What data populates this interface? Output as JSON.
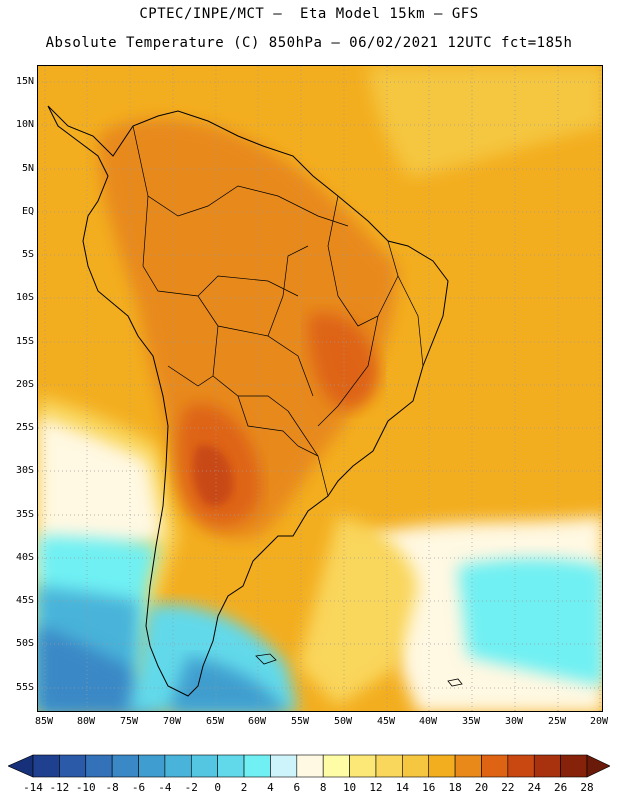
{
  "header": {
    "title_line1": "CPTEC/INPE/MCT –  Eta Model 15km – GFS",
    "title_line2": "Absolute Temperature (C) 850hPa – 06/02/2021 12UTC fct=185h"
  },
  "map": {
    "lat_labels": [
      "15N",
      "10N",
      "5N",
      "EQ",
      "5S",
      "10S",
      "15S",
      "20S",
      "25S",
      "30S",
      "35S",
      "40S",
      "45S",
      "50S",
      "55S"
    ],
    "lon_labels": [
      "85W",
      "80W",
      "75W",
      "70W",
      "65W",
      "60W",
      "55W",
      "50W",
      "45W",
      "40W",
      "35W",
      "30W",
      "25W",
      "20W"
    ]
  },
  "colorbar": {
    "labels": [
      "-14",
      "-12",
      "-10",
      "-8",
      "-6",
      "-4",
      "-2",
      "0",
      "2",
      "4",
      "6",
      "8",
      "10",
      "12",
      "14",
      "16",
      "18",
      "20",
      "22",
      "24",
      "26",
      "28"
    ],
    "colors": [
      "#1f3f8f",
      "#2a5aa8",
      "#3371b8",
      "#3a88c6",
      "#3f9ecf",
      "#49b3d9",
      "#55c6e1",
      "#62d9ea",
      "#70f0f3",
      "#cdf3fb",
      "#fff8e2",
      "#fffca6",
      "#fbe876",
      "#f9d65c",
      "#f5c640",
      "#f3ae1f",
      "#e8891a",
      "#de6414",
      "#c94812",
      "#a9320e",
      "#852209"
    ],
    "end_left_color": "#16307a",
    "end_right_color": "#6a1a08"
  }
}
